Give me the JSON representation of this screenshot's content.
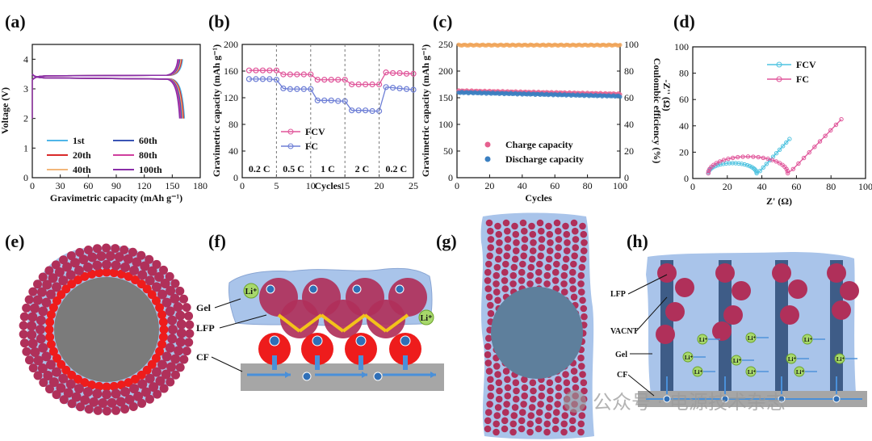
{
  "panels": {
    "a": {
      "label": "(a)"
    },
    "b": {
      "label": "(b)"
    },
    "c": {
      "label": "(c)"
    },
    "d": {
      "label": "(d)"
    },
    "e": {
      "label": "(e)"
    },
    "f": {
      "label": "(f)",
      "gel": "Gel",
      "lfp": "LFP",
      "cf": "CF",
      "li": "Li⁺",
      "e": "e⁻"
    },
    "g": {
      "label": "(g)"
    },
    "h": {
      "label": "(h)",
      "lfp": "LFP",
      "vacnt": "VACNT",
      "gel": "Gel",
      "cf": "CF",
      "li": "Li⁺"
    }
  },
  "watermark": "公众号 · 电源技术杂志",
  "colors": {
    "lfp": "#b0305a",
    "gel": "#a9c4ea",
    "core": "#7b7b7b",
    "red": "#ee1c1c",
    "cf": "#a6a6a6",
    "vacnt": "#3e5c87",
    "li": "#a7d86b",
    "arrow": "#4a90d9",
    "fcv": "#4fc3e0",
    "fc": "#e0559a"
  },
  "chart_data": [
    {
      "panel": "a",
      "type": "line",
      "xlabel": "Gravimetric capacity (mAh g⁻¹)",
      "ylabel": "Voltage (V)",
      "xlim": [
        0,
        180
      ],
      "ylim": [
        0,
        4.5
      ],
      "xticks": [
        0,
        30,
        60,
        90,
        120,
        150,
        180
      ],
      "yticks": [
        0,
        1,
        2,
        3,
        4
      ],
      "series": [
        {
          "name": "1st",
          "color": "#4fb6e8",
          "capacity": 163
        },
        {
          "name": "20th",
          "color": "#d92a2a",
          "capacity": 162
        },
        {
          "name": "40th",
          "color": "#f2b77a",
          "capacity": 161
        },
        {
          "name": "60th",
          "color": "#3a55b5",
          "capacity": 160
        },
        {
          "name": "80th",
          "color": "#cf3f9e",
          "capacity": 159
        },
        {
          "name": "100th",
          "color": "#8a2fa8",
          "capacity": 158
        }
      ]
    },
    {
      "panel": "b",
      "type": "line",
      "xlabel": "Cycles",
      "ylabel": "Gravimetric capacity (mAh g⁻¹)",
      "xlim": [
        0,
        25
      ],
      "ylim": [
        0,
        200
      ],
      "xticks": [
        0,
        5,
        10,
        15,
        20,
        25
      ],
      "yticks": [
        0,
        40,
        80,
        120,
        160,
        200
      ],
      "rate_labels": [
        "0.2 C",
        "0.5 C",
        "1 C",
        "2 C",
        "0.2 C"
      ],
      "series": [
        {
          "name": "FCV",
          "color": "#e0559a",
          "values": [
            161,
            161,
            161,
            161,
            161,
            155,
            155,
            155,
            155,
            155,
            147,
            147,
            147,
            147,
            147,
            140,
            140,
            140,
            140,
            140,
            158,
            157,
            157,
            156,
            156
          ]
        },
        {
          "name": "FC",
          "color": "#6e7fd6",
          "values": [
            148,
            148,
            148,
            148,
            147,
            134,
            133,
            133,
            133,
            133,
            116,
            116,
            116,
            115,
            115,
            101,
            101,
            101,
            100,
            100,
            136,
            135,
            134,
            133,
            132
          ]
        }
      ]
    },
    {
      "panel": "c",
      "type": "scatter",
      "xlabel": "Cycles",
      "ylabel": "Gravimetric capacity (mAh g⁻¹)",
      "y2label": "Coulombic efficiency (%)",
      "xlim": [
        0,
        100
      ],
      "ylim": [
        0,
        250
      ],
      "y2lim": [
        0,
        100
      ],
      "xticks": [
        0,
        20,
        40,
        60,
        80,
        100
      ],
      "yticks": [
        0,
        50,
        100,
        150,
        200,
        250
      ],
      "y2ticks": [
        0,
        20,
        40,
        60,
        80,
        100
      ],
      "series": [
        {
          "name": "Charge capacity",
          "color": "#e6608f",
          "start": 163,
          "end": 157
        },
        {
          "name": "Discharge capacity",
          "color": "#3a7fc1",
          "start": 160,
          "end": 153
        },
        {
          "name": "Coulombic efficiency",
          "color": "#f2a65a",
          "value": 99.5
        }
      ]
    },
    {
      "panel": "d",
      "type": "line",
      "xlabel": "Z' (Ω)",
      "ylabel": "-Z'' (Ω)",
      "xlim": [
        0,
        100
      ],
      "ylim": [
        0,
        100
      ],
      "xticks": [
        0,
        20,
        40,
        60,
        80,
        100
      ],
      "yticks": [
        0,
        20,
        40,
        60,
        80,
        100
      ],
      "series": [
        {
          "name": "FCV",
          "color": "#4fc3e0",
          "semicircle": [
            9,
            37
          ],
          "tail_end": [
            56,
            30
          ]
        },
        {
          "name": "FC",
          "color": "#e0559a",
          "semicircle": [
            9,
            55
          ],
          "tail_end": [
            86,
            45
          ]
        }
      ]
    }
  ]
}
